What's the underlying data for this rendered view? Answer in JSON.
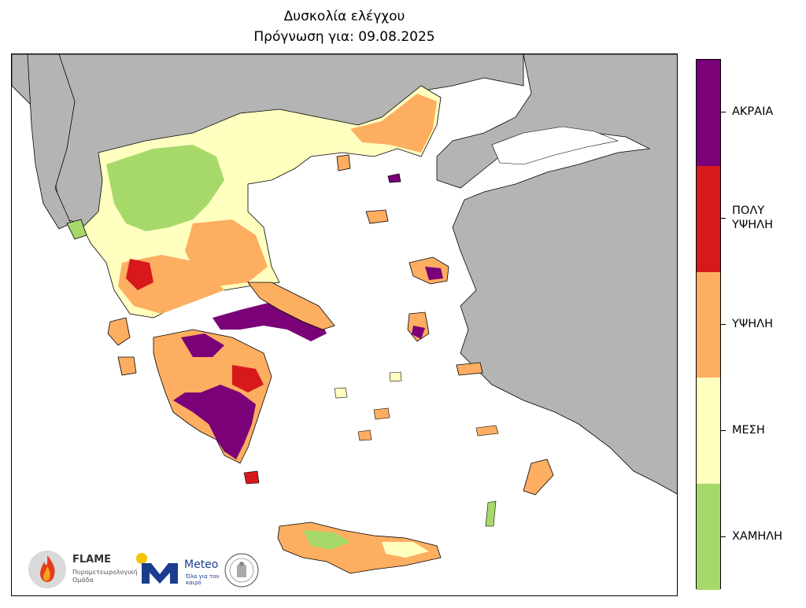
{
  "title": "Δυσκολία ελέγχου",
  "subtitle": "Πρόγνωση για: 09.08.2025",
  "legend": [
    {
      "label": "ΑΚΡΑΙΑ",
      "color": "#7a0177"
    },
    {
      "label": "ΠΟΛΥ\nΥΨΗΛΗ",
      "color": "#d7191c"
    },
    {
      "label": "ΥΨΗΛΗ",
      "color": "#fdae61"
    },
    {
      "label": "ΜΕΣΗ",
      "color": "#ffffbf"
    },
    {
      "label": "ΧΑΜΗΛΗ",
      "color": "#a6d96a"
    }
  ],
  "colors": {
    "foreign_land": "#b4b4b4",
    "sea": "#ffffff",
    "border": "#000000"
  },
  "logos": {
    "flame_name": "FLAME",
    "flame_sub": "Πυρομετεωρολογική Ομάδα",
    "meteo_name": "Meteo",
    "meteo_sub": "Όλα για τον καιρό"
  }
}
